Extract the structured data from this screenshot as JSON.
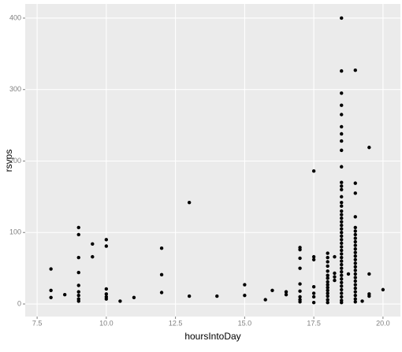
{
  "chart_data": {
    "type": "scatter",
    "x_label": "hoursIntoDay",
    "y_label": "rsvps",
    "color": "#000000",
    "background": "#ebebeb",
    "grid": true,
    "xlim": [
      7.07,
      20.63
    ],
    "ylim": [
      -17.6,
      419.8
    ],
    "xticks": [
      7.5,
      {
        "value": 10,
        "label": "10.0"
      },
      12.5,
      {
        "value": 15,
        "label": "15.0"
      },
      17.5,
      {
        "value": 20,
        "label": "20.0"
      }
    ],
    "yticks": [
      0,
      100,
      200,
      300,
      400
    ],
    "x": [
      8,
      8,
      8,
      8.5,
      9,
      9,
      9,
      9,
      9,
      9,
      9,
      9,
      9,
      9.5,
      9.5,
      10,
      10,
      10,
      10,
      10,
      10,
      10.5,
      11,
      12,
      12,
      12,
      13,
      13,
      14,
      15,
      15,
      15.75,
      16,
      16.5,
      16.5,
      17,
      17,
      17,
      17,
      17,
      17,
      17,
      17,
      17,
      17.5,
      17.5,
      17.5,
      17.5,
      17.5,
      17.5,
      17.5,
      18,
      18,
      18,
      18,
      18,
      18,
      18,
      18,
      18,
      18,
      18,
      18,
      18,
      18,
      18,
      18.25,
      18.25,
      18.25,
      18.25,
      18.5,
      18.5,
      18.5,
      18.5,
      18.5,
      18.5,
      18.5,
      18.5,
      18.5,
      18.5,
      18.5,
      18.5,
      18.5,
      18.5,
      18.5,
      18.5,
      18.5,
      18.5,
      18.5,
      18.5,
      18.5,
      18.5,
      18.5,
      18.5,
      18.5,
      18.5,
      18.5,
      18.5,
      18.5,
      18.5,
      18.5,
      18.5,
      18.5,
      18.5,
      18.5,
      18.5,
      18.5,
      18.5,
      18.5,
      18.5,
      18.5,
      18.5,
      18.5,
      18.75,
      19,
      19,
      19,
      19,
      19,
      19,
      19,
      19,
      19,
      19,
      19,
      19,
      19,
      19,
      19,
      19,
      19,
      19,
      19,
      19,
      19,
      19,
      19,
      19,
      19,
      19,
      19.25,
      19.5,
      19.5,
      19.5,
      19.5,
      20
    ],
    "values": [
      49,
      19,
      9,
      13,
      107,
      97,
      65,
      44,
      26,
      17,
      12,
      7,
      4,
      84,
      66,
      90,
      81,
      21,
      14,
      10,
      7,
      4,
      9,
      78,
      41,
      16,
      142,
      11,
      11,
      27,
      12,
      6,
      19,
      17,
      13,
      79,
      76,
      64,
      50,
      28,
      18,
      10,
      6,
      3,
      186,
      66,
      62,
      24,
      15,
      10,
      2,
      71,
      65,
      59,
      53,
      46,
      40,
      36,
      31,
      27,
      23,
      19,
      15,
      11,
      6,
      2,
      66,
      43,
      38,
      33,
      400,
      326,
      295,
      278,
      265,
      248,
      238,
      228,
      215,
      192,
      170,
      165,
      160,
      150,
      142,
      137,
      130,
      125,
      120,
      115,
      110,
      105,
      100,
      95,
      90,
      85,
      80,
      75,
      70,
      65,
      60,
      55,
      50,
      45,
      40,
      35,
      30,
      25,
      20,
      15,
      10,
      5,
      2,
      42,
      327,
      169,
      155,
      122,
      107,
      102,
      97,
      92,
      87,
      82,
      77,
      72,
      67,
      62,
      57,
      52,
      47,
      42,
      37,
      32,
      27,
      22,
      17,
      12,
      7,
      3,
      4,
      219,
      42,
      14,
      11,
      20
    ]
  }
}
